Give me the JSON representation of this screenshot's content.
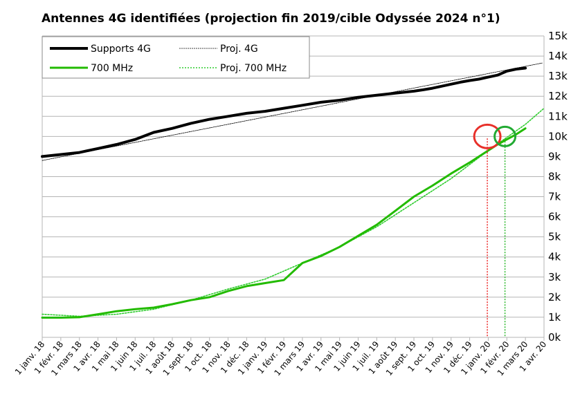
{
  "chart_data": {
    "type": "line",
    "title": "Antennes 4G identifiées (projection fin 2019/cible Odyssée 2024 n°1)",
    "xlabel": "",
    "ylabel": "",
    "ylim": [
      0,
      15000
    ],
    "y_ticks": [
      "0k",
      "1k",
      "2k",
      "3k",
      "4k",
      "5k",
      "6k",
      "7k",
      "8k",
      "9k",
      "10k",
      "11k",
      "12k",
      "13k",
      "14k",
      "15k"
    ],
    "x_ticks": [
      "1 janv. 18",
      "1 févr. 18",
      "1 mars 18",
      "1 avr. 18",
      "1 mai 18",
      "1 juin 18",
      "1 juil. 18",
      "1 août 18",
      "1 sept. 18",
      "1 oct. 18",
      "1 nov. 18",
      "1 déc. 18",
      "1 janv. 19",
      "1 févr. 19",
      "1 mars 19",
      "1 avr. 19",
      "1 mai 19",
      "1 juin 19",
      "1 juil. 19",
      "1 août 19",
      "1 sept. 19",
      "1 oct. 19",
      "1 nov. 19",
      "1 déc. 19",
      "1 janv. 20",
      "1 févr. 20",
      "1 mars 20",
      "1 avr. 20"
    ],
    "grid": true,
    "legend": "top-left",
    "colors": {
      "supports": "#000000",
      "mhz700": "#22bb00",
      "proj700": "#2ecc2e",
      "marker_red": "#e8302a",
      "marker_green": "#22aa33",
      "drop_red": "#ee3333",
      "drop_green": "#33bb33"
    },
    "series": [
      {
        "name": "Supports 4G",
        "x": [
          0,
          1,
          2,
          3,
          4,
          5,
          6,
          7,
          8,
          9,
          10,
          11,
          12,
          13,
          14,
          15,
          16,
          17,
          18,
          19,
          20,
          20.5,
          21,
          21.5,
          22,
          22.5,
          23,
          23.5,
          24,
          24.5,
          25,
          25.5,
          26
        ],
        "values": [
          9000,
          9100,
          9200,
          9400,
          9600,
          9850,
          10200,
          10400,
          10650,
          10850,
          11000,
          11150,
          11250,
          11400,
          11550,
          11700,
          11800,
          11950,
          12050,
          12150,
          12250,
          12320,
          12400,
          12500,
          12600,
          12700,
          12780,
          12850,
          12950,
          13050,
          13250,
          13350,
          13400
        ]
      },
      {
        "name": "Proj. 4G",
        "x": [
          0,
          26.9
        ],
        "values": [
          8800,
          13650
        ]
      },
      {
        "name": "700 MHz",
        "x": [
          0,
          1,
          2,
          3,
          4,
          5,
          6,
          7,
          8,
          9,
          10,
          11,
          12,
          13,
          14,
          15,
          16,
          17,
          18,
          19,
          20,
          21,
          22,
          23,
          24,
          24.5,
          25,
          25.5,
          26
        ],
        "values": [
          980,
          980,
          1000,
          1150,
          1300,
          1400,
          1480,
          1650,
          1850,
          2000,
          2300,
          2550,
          2700,
          2850,
          3700,
          4050,
          4500,
          5050,
          5600,
          6300,
          7000,
          7550,
          8150,
          8700,
          9300,
          9600,
          9850,
          10100,
          10400
        ]
      },
      {
        "name": "Proj. 700 MHz",
        "x": [
          0,
          2,
          4,
          6,
          8,
          10,
          12,
          14,
          16,
          18,
          20,
          22,
          24,
          26,
          27
        ],
        "values": [
          1150,
          1050,
          1150,
          1400,
          1850,
          2400,
          2900,
          3700,
          4500,
          5500,
          6700,
          7900,
          9300,
          10600,
          11400
        ]
      }
    ],
    "annotations": [
      {
        "type": "circle",
        "color": "red",
        "x": 23.95,
        "y": 10000
      },
      {
        "type": "circle",
        "color": "green",
        "x": 24.9,
        "y": 10000
      },
      {
        "type": "drop-line",
        "color": "red",
        "x": 23.95,
        "from": 9900,
        "to": 0
      },
      {
        "type": "drop-line",
        "color": "green",
        "x": 24.9,
        "from": 9900,
        "to": 0
      }
    ]
  }
}
